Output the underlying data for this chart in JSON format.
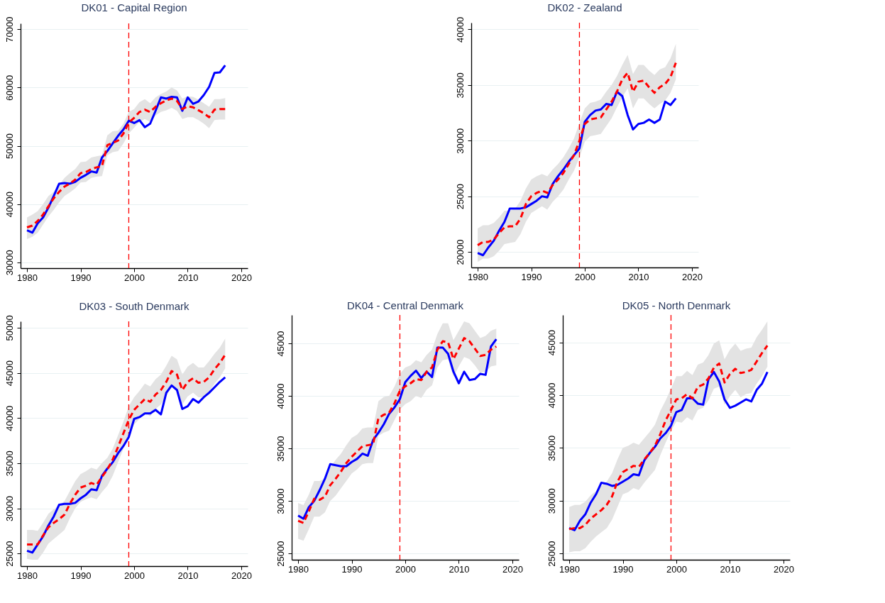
{
  "chart_data": [
    {
      "type": "line",
      "title": "DK01 - Capital Region",
      "x": [
        1980,
        1981,
        1982,
        1983,
        1984,
        1985,
        1986,
        1987,
        1988,
        1989,
        1990,
        1991,
        1992,
        1993,
        1994,
        1995,
        1996,
        1997,
        1998,
        1999,
        2000,
        2001,
        2002,
        2003,
        2004,
        2005,
        2006,
        2007,
        2008,
        2009,
        2010,
        2011,
        2012,
        2013,
        2014,
        2015,
        2016,
        2017
      ],
      "xlim": [
        1978.8,
        2021.2
      ],
      "xticks": [
        1980,
        1990,
        2000,
        2010,
        2020
      ],
      "ylim": [
        29000,
        71000
      ],
      "yticks": [
        30000,
        40000,
        50000,
        60000,
        70000
      ],
      "grid": "y",
      "ref_lines": [
        {
          "axis": "x",
          "value": 1999,
          "color": "#ff0000",
          "line_style": "dashed"
        }
      ],
      "series": [
        {
          "color": "#0000ff",
          "line_style": "solid",
          "values": [
            35500,
            35100,
            36700,
            37700,
            39400,
            41400,
            43500,
            43600,
            43500,
            43800,
            44500,
            45000,
            45600,
            45400,
            48000,
            49100,
            50400,
            51700,
            52800,
            54300,
            53900,
            54400,
            53200,
            53800,
            56000,
            58300,
            58100,
            58400,
            58300,
            56000,
            58300,
            57200,
            57600,
            58700,
            60100,
            62500,
            62600,
            63800
          ]
        },
        {
          "color": "#ff0000",
          "line_style": "dashed",
          "values": [
            36000,
            36300,
            37100,
            38200,
            39600,
            41000,
            42100,
            43000,
            43500,
            44200,
            45300,
            45500,
            46000,
            46300,
            46500,
            50100,
            50500,
            50900,
            52100,
            54000,
            54800,
            55800,
            56200,
            55800,
            56700,
            57300,
            57800,
            58100,
            57700,
            56300,
            56800,
            56600,
            56100,
            55600,
            54900,
            56200,
            56300,
            56300
          ],
          "lower": [
            34000,
            34400,
            35100,
            36500,
            37900,
            39000,
            40300,
            41400,
            42000,
            42700,
            43700,
            43800,
            44500,
            44700,
            44800,
            48400,
            48900,
            49100,
            50400,
            52100,
            53100,
            54100,
            54600,
            54100,
            55200,
            55800,
            56100,
            56500,
            56000,
            54600,
            54900,
            54900,
            54400,
            53800,
            53000,
            54400,
            54500,
            54500
          ],
          "upper": [
            37700,
            38200,
            38800,
            40000,
            41400,
            42100,
            43300,
            44500,
            45300,
            46000,
            47200,
            47300,
            48000,
            48200,
            48400,
            51800,
            52500,
            52600,
            53800,
            55800,
            56300,
            57500,
            58000,
            57300,
            58300,
            58900,
            59300,
            60000,
            59500,
            58100,
            58500,
            58400,
            57900,
            57300,
            56700,
            58000,
            58000,
            58200
          ]
        }
      ]
    },
    {
      "type": "line",
      "title": "DK02 - Zealand",
      "x": [
        1980,
        1981,
        1982,
        1983,
        1984,
        1985,
        1986,
        1987,
        1988,
        1989,
        1990,
        1991,
        1992,
        1993,
        1994,
        1995,
        1996,
        1997,
        1998,
        1999,
        2000,
        2001,
        2002,
        2003,
        2004,
        2005,
        2006,
        2007,
        2008,
        2009,
        2010,
        2011,
        2012,
        2013,
        2014,
        2015,
        2016,
        2017
      ],
      "xlim": [
        1978.8,
        2021.2
      ],
      "xticks": [
        1980,
        1990,
        2000,
        2010,
        2020
      ],
      "ylim": [
        18600,
        40600
      ],
      "yticks": [
        20000,
        25000,
        30000,
        35000,
        40000
      ],
      "grid": "y",
      "ref_lines": [
        {
          "axis": "x",
          "value": 1999,
          "color": "#ff0000",
          "line_style": "dashed"
        }
      ],
      "series": [
        {
          "color": "#0000ff",
          "line_style": "solid",
          "values": [
            19900,
            19700,
            20400,
            21000,
            21900,
            22700,
            23900,
            23900,
            23900,
            24000,
            24300,
            24600,
            25000,
            24900,
            26100,
            26800,
            27400,
            28100,
            28700,
            29300,
            31700,
            32300,
            32700,
            32800,
            33300,
            33200,
            34400,
            34000,
            32300,
            31000,
            31500,
            31600,
            31900,
            31600,
            31900,
            33500,
            33200,
            33800
          ]
        },
        {
          "color": "#ff0000",
          "line_style": "dashed",
          "values": [
            20600,
            20900,
            20900,
            21100,
            21700,
            22200,
            22300,
            22300,
            23000,
            24300,
            25000,
            25300,
            25500,
            25300,
            26000,
            26500,
            27100,
            27900,
            28700,
            30000,
            31500,
            31900,
            32000,
            32100,
            32800,
            33500,
            34400,
            35500,
            36100,
            34400,
            35300,
            35400,
            34800,
            34300,
            34800,
            35100,
            35700,
            37000
          ],
          "lower": [
            19100,
            19400,
            19400,
            19600,
            20100,
            20700,
            20800,
            20900,
            21600,
            22700,
            23500,
            23800,
            24100,
            23800,
            24500,
            25000,
            25600,
            26500,
            27300,
            28500,
            29900,
            30400,
            30500,
            30600,
            31300,
            32000,
            33000,
            33900,
            34700,
            32900,
            33800,
            33800,
            33300,
            32900,
            33300,
            33600,
            34300,
            35500
          ],
          "upper": [
            22100,
            22400,
            22400,
            22600,
            23100,
            23700,
            23700,
            23900,
            24600,
            25700,
            26500,
            26800,
            27000,
            26800,
            27400,
            27900,
            28500,
            29300,
            30200,
            31600,
            32900,
            33400,
            33500,
            33700,
            34400,
            35000,
            35800,
            36800,
            37700,
            36000,
            36800,
            36800,
            36300,
            35900,
            36400,
            36600,
            37400,
            38700
          ]
        }
      ]
    },
    {
      "type": "line",
      "title": "DK03 - South Denmark",
      "x": [
        1980,
        1981,
        1982,
        1983,
        1984,
        1985,
        1986,
        1987,
        1988,
        1989,
        1990,
        1991,
        1992,
        1993,
        1994,
        1995,
        1996,
        1997,
        1998,
        1999,
        2000,
        2001,
        2002,
        2003,
        2004,
        2005,
        2006,
        2007,
        2008,
        2009,
        2010,
        2011,
        2012,
        2013,
        2014,
        2015,
        2016,
        2017
      ],
      "xlim": [
        1978.8,
        2021.2
      ],
      "xticks": [
        1980,
        1990,
        2000,
        2010,
        2020
      ],
      "ylim": [
        23600,
        50700
      ],
      "yticks": [
        25000,
        30000,
        35000,
        40000,
        45000,
        50000
      ],
      "grid": "y",
      "ref_lines": [
        {
          "axis": "x",
          "value": 1999,
          "color": "#ff0000",
          "line_style": "dashed"
        }
      ],
      "series": [
        {
          "color": "#0000ff",
          "line_style": "solid",
          "values": [
            25300,
            25100,
            26000,
            26900,
            28100,
            29100,
            30400,
            30500,
            30500,
            30600,
            31100,
            31500,
            32100,
            32000,
            33600,
            34400,
            35100,
            36100,
            36900,
            37900,
            39900,
            40100,
            40500,
            40500,
            40900,
            40400,
            42800,
            43600,
            43100,
            41000,
            41300,
            42100,
            41700,
            42300,
            42800,
            43400,
            44000,
            44500
          ]
        },
        {
          "color": "#ff0000",
          "line_style": "dashed",
          "values": [
            26000,
            26000,
            26000,
            27000,
            27900,
            28400,
            28800,
            29300,
            30500,
            31500,
            32300,
            32500,
            32800,
            32600,
            33500,
            34300,
            35400,
            36800,
            38300,
            39800,
            40900,
            41500,
            42100,
            41800,
            42600,
            43100,
            44000,
            45200,
            44800,
            43100,
            44000,
            44400,
            43900,
            44000,
            44500,
            45400,
            46100,
            47000
          ],
          "lower": [
            24400,
            24300,
            24300,
            25100,
            26100,
            26600,
            27100,
            27600,
            28900,
            30000,
            30700,
            31000,
            31200,
            31000,
            31800,
            32500,
            33600,
            35100,
            36600,
            38100,
            39300,
            39900,
            40600,
            40200,
            41000,
            41500,
            42400,
            43500,
            43100,
            41500,
            42400,
            42800,
            42300,
            42300,
            42900,
            43800,
            44500,
            45500
          ],
          "upper": [
            27600,
            27600,
            27500,
            28400,
            29400,
            29900,
            30300,
            30800,
            31900,
            33000,
            33800,
            34100,
            34500,
            34300,
            35000,
            35600,
            36600,
            38100,
            39600,
            41300,
            42300,
            43000,
            43800,
            43500,
            44300,
            44800,
            45800,
            46900,
            46500,
            44800,
            45700,
            46100,
            45600,
            45600,
            46300,
            47100,
            47800,
            48800
          ]
        }
      ]
    },
    {
      "type": "line",
      "title": "DK04 - Central Denmark",
      "x": [
        1980,
        1981,
        1982,
        1983,
        1984,
        1985,
        1986,
        1987,
        1988,
        1989,
        1990,
        1991,
        1992,
        1993,
        1994,
        1995,
        1996,
        1997,
        1998,
        1999,
        2000,
        2001,
        2002,
        2003,
        2004,
        2005,
        2006,
        2007,
        2008,
        2009,
        2010,
        2011,
        2012,
        2013,
        2014,
        2015,
        2016,
        2017
      ],
      "xlim": [
        1978.8,
        2021.2
      ],
      "xticks": [
        1980,
        1990,
        2000,
        2010,
        2020
      ],
      "ylim": [
        24400,
        47700
      ],
      "yticks": [
        25000,
        30000,
        35000,
        40000,
        45000
      ],
      "grid": "y",
      "ref_lines": [
        {
          "axis": "x",
          "value": 1999,
          "color": "#ff0000",
          "line_style": "dashed"
        }
      ],
      "series": [
        {
          "color": "#0000ff",
          "line_style": "solid",
          "values": [
            28600,
            28300,
            29400,
            30000,
            31000,
            32100,
            33500,
            33400,
            33300,
            33300,
            33700,
            34000,
            34500,
            34300,
            35800,
            36500,
            37300,
            38300,
            38900,
            39700,
            41300,
            41900,
            42400,
            41700,
            42300,
            41800,
            44600,
            44600,
            44000,
            42300,
            41200,
            42300,
            41500,
            41600,
            42100,
            42000,
            44700,
            45400
          ]
        },
        {
          "color": "#ff0000",
          "line_style": "dashed",
          "values": [
            28100,
            27900,
            29000,
            30200,
            30100,
            30400,
            31500,
            32100,
            32800,
            33600,
            34200,
            34700,
            35200,
            35300,
            35400,
            37900,
            38200,
            38400,
            39300,
            40500,
            40900,
            41200,
            41600,
            41500,
            42300,
            42700,
            44400,
            45200,
            45100,
            43500,
            44500,
            45500,
            45200,
            44500,
            43800,
            43900,
            44400,
            44700
          ],
          "lower": [
            26400,
            26200,
            27300,
            28500,
            28500,
            28900,
            30000,
            30500,
            31200,
            31900,
            32600,
            33000,
            33500,
            33600,
            33600,
            36200,
            36500,
            36700,
            37700,
            38700,
            39200,
            39500,
            40000,
            39800,
            40600,
            41000,
            42700,
            43400,
            43500,
            41800,
            42800,
            43700,
            43500,
            42900,
            42200,
            42300,
            42800,
            42900
          ],
          "upper": [
            29800,
            29600,
            30600,
            31900,
            31900,
            32100,
            33200,
            33900,
            34500,
            35300,
            36000,
            36300,
            36900,
            37000,
            37000,
            39500,
            39900,
            40000,
            40900,
            42100,
            42700,
            42900,
            43400,
            43200,
            43900,
            44400,
            45900,
            46900,
            46900,
            45300,
            46200,
            47100,
            46900,
            46200,
            45500,
            45700,
            46200,
            46400
          ]
        }
      ]
    },
    {
      "type": "line",
      "title": "DK05 - North Denmark",
      "x": [
        1980,
        1981,
        1982,
        1983,
        1984,
        1985,
        1986,
        1987,
        1988,
        1989,
        1990,
        1991,
        1992,
        1993,
        1994,
        1995,
        1996,
        1997,
        1998,
        1999,
        2000,
        2001,
        2002,
        2003,
        2004,
        2005,
        2006,
        2007,
        2008,
        2009,
        2010,
        2011,
        2012,
        2013,
        2014,
        2015,
        2016,
        2017
      ],
      "xlim": [
        1978.8,
        2021.2
      ],
      "xticks": [
        1980,
        1990,
        2000,
        2010,
        2020
      ],
      "ylim": [
        24400,
        47600
      ],
      "yticks": [
        25000,
        30000,
        35000,
        40000,
        45000
      ],
      "grid": "y",
      "ref_lines": [
        {
          "axis": "x",
          "value": 1999,
          "color": "#ff0000",
          "line_style": "dashed"
        }
      ],
      "series": [
        {
          "color": "#0000ff",
          "line_style": "solid",
          "values": [
            27400,
            27200,
            28100,
            28700,
            29800,
            30600,
            31700,
            31600,
            31400,
            31500,
            31800,
            32100,
            32500,
            32400,
            33800,
            34500,
            35100,
            35900,
            36400,
            37100,
            38400,
            38600,
            39700,
            39700,
            39200,
            39100,
            41500,
            42200,
            41300,
            39600,
            38800,
            39000,
            39300,
            39600,
            39400,
            40500,
            41100,
            42200
          ]
        },
        {
          "color": "#ff0000",
          "line_style": "dashed",
          "values": [
            27300,
            27400,
            27400,
            27700,
            28300,
            28700,
            29100,
            29600,
            30400,
            31800,
            32700,
            33000,
            33300,
            33200,
            33900,
            34500,
            35200,
            36300,
            37600,
            38600,
            39600,
            39700,
            40100,
            39700,
            40800,
            41000,
            41600,
            42600,
            43000,
            41200,
            42000,
            42500,
            42100,
            42200,
            42400,
            43200,
            44000,
            44700
          ],
          "lower": [
            25100,
            25200,
            25200,
            25500,
            26100,
            26600,
            27000,
            27400,
            28200,
            29400,
            30600,
            30800,
            31200,
            31000,
            31700,
            32300,
            32900,
            34300,
            35500,
            36600,
            37500,
            37400,
            37900,
            37600,
            38600,
            38800,
            39500,
            40600,
            40800,
            39100,
            39900,
            40500,
            39800,
            40100,
            40200,
            41100,
            41800,
            42700
          ],
          "upper": [
            29400,
            29600,
            29600,
            29900,
            30500,
            30900,
            31400,
            31800,
            32600,
            33900,
            35000,
            35200,
            35500,
            35300,
            35900,
            36500,
            37200,
            38500,
            39500,
            40600,
            41800,
            41800,
            42300,
            41900,
            42900,
            43100,
            43800,
            44900,
            45200,
            43400,
            44300,
            44900,
            44200,
            44400,
            44500,
            45500,
            46200,
            47000
          ]
        }
      ]
    }
  ]
}
